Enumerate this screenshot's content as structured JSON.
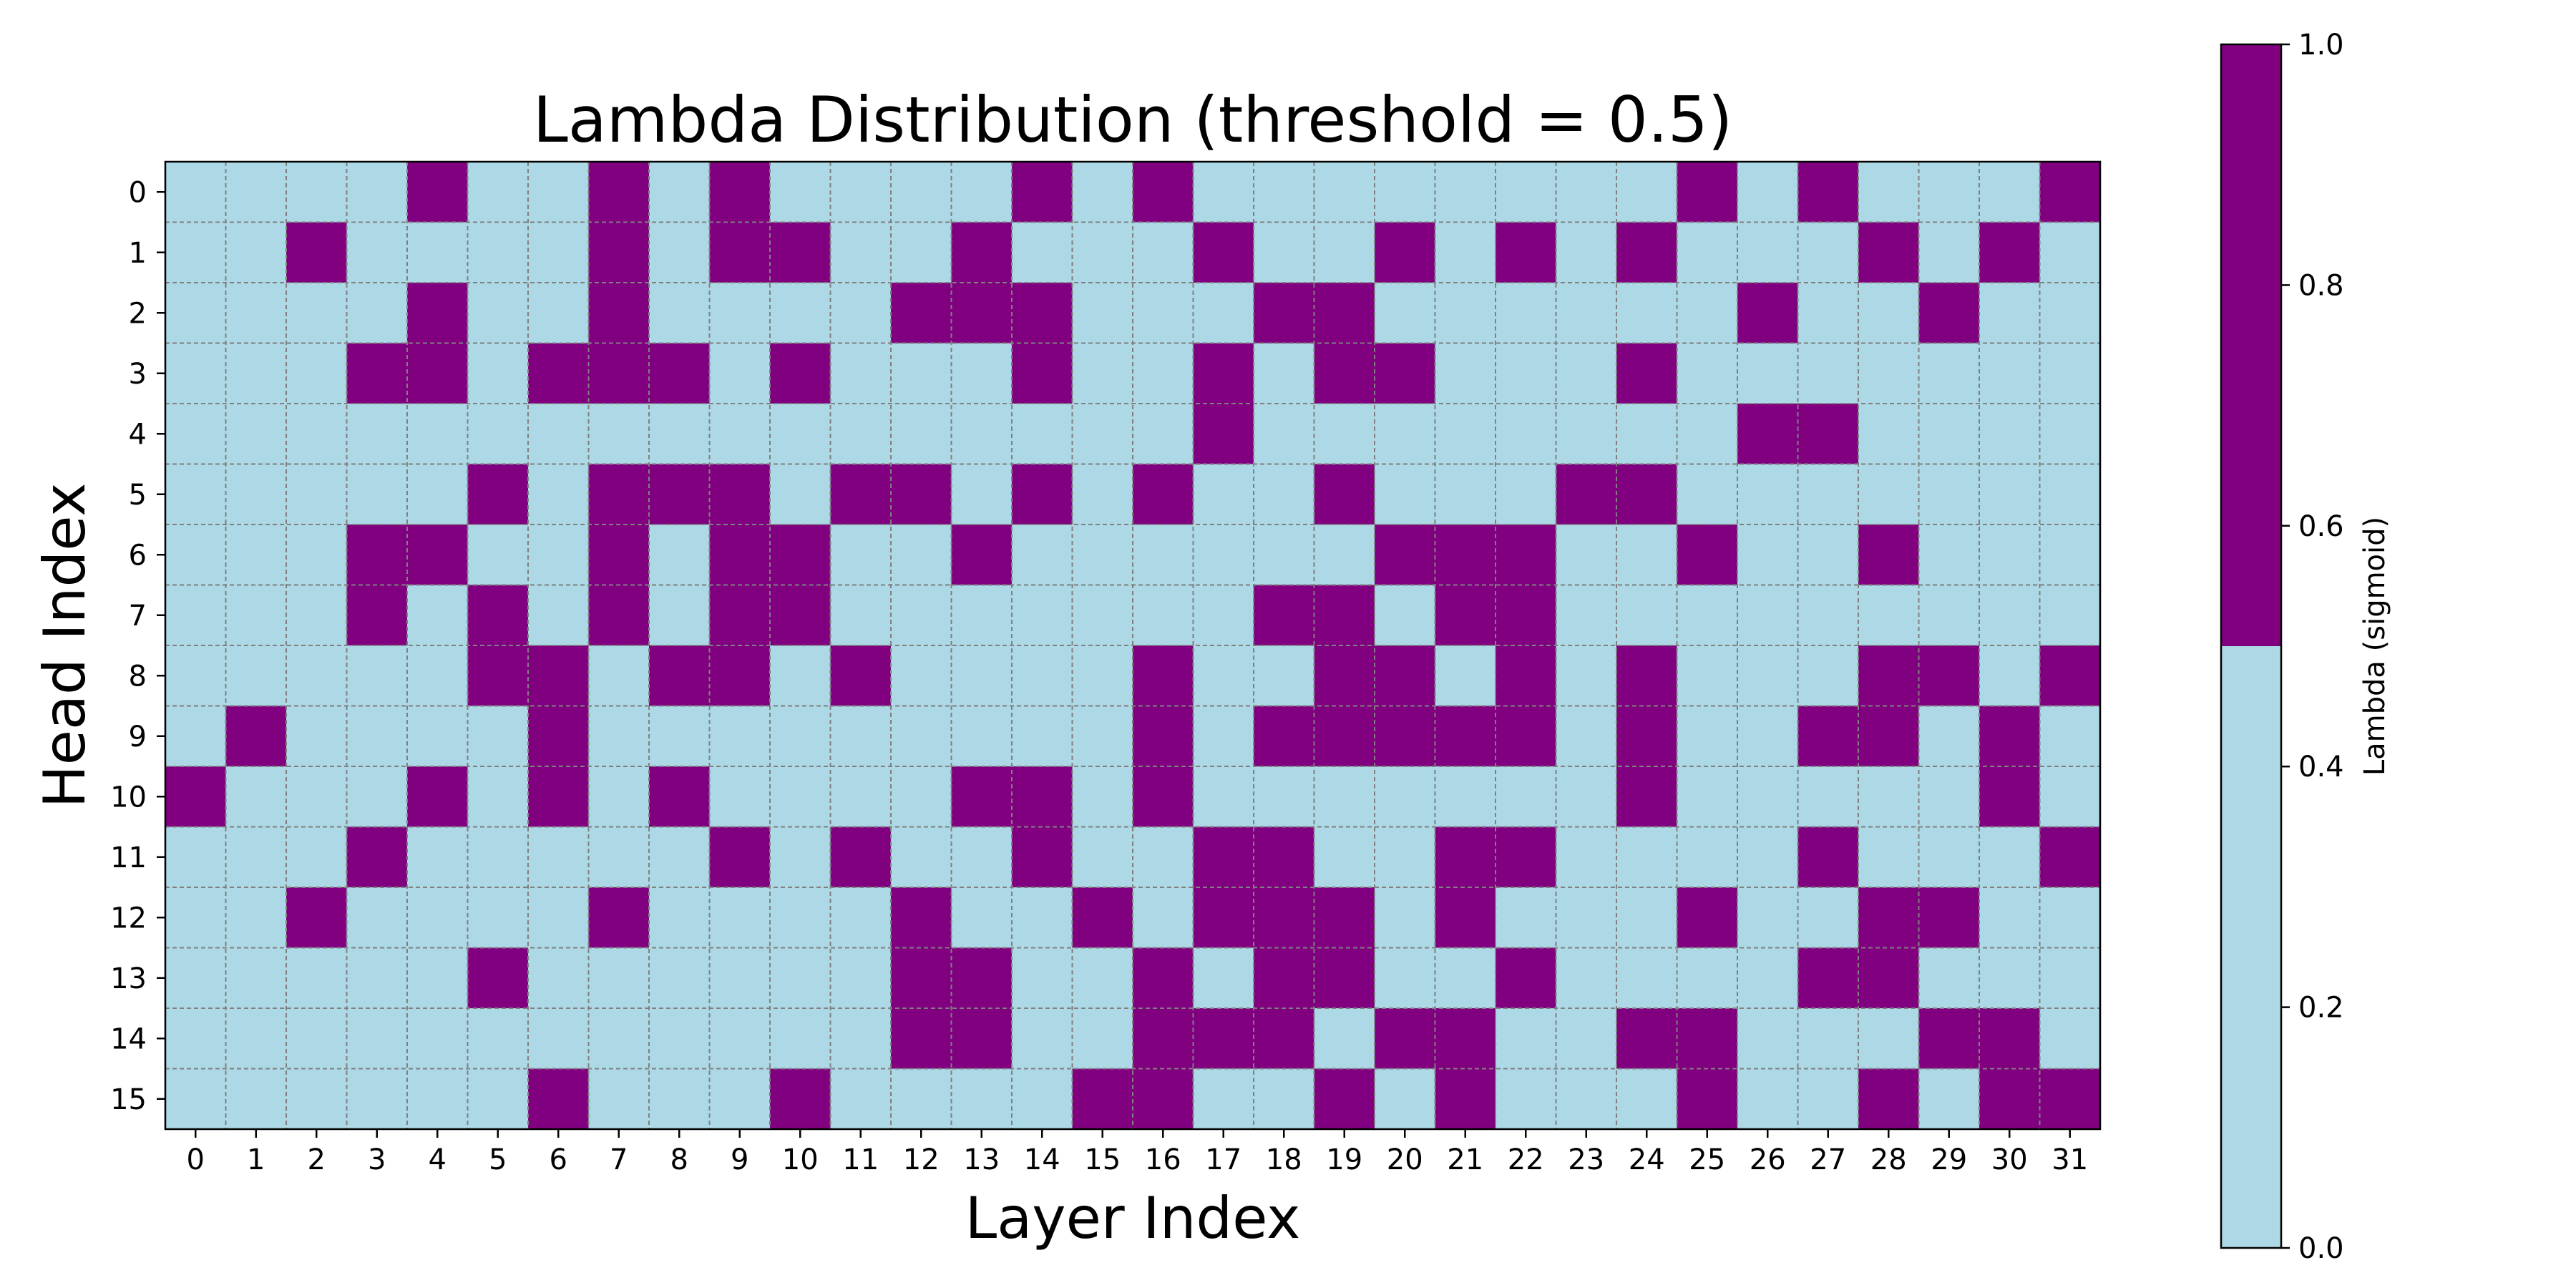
{
  "chart_data": {
    "type": "heatmap",
    "title": "Lambda Distribution (threshold = 0.5)",
    "xlabel": "Layer Index",
    "ylabel": "Head Index",
    "x_ticks": [
      "0",
      "1",
      "2",
      "3",
      "4",
      "5",
      "6",
      "7",
      "8",
      "9",
      "10",
      "11",
      "12",
      "13",
      "14",
      "15",
      "16",
      "17",
      "18",
      "19",
      "20",
      "21",
      "22",
      "23",
      "24",
      "25",
      "26",
      "27",
      "28",
      "29",
      "30",
      "31"
    ],
    "y_ticks": [
      "0",
      "1",
      "2",
      "3",
      "4",
      "5",
      "6",
      "7",
      "8",
      "9",
      "10",
      "11",
      "12",
      "13",
      "14",
      "15"
    ],
    "grid": true,
    "threshold": 0.5,
    "colors": {
      "low": "#add8e6",
      "high": "#800080"
    },
    "colorbar": {
      "label": "Lambda (sigmoid)",
      "range": [
        0.0,
        1.0
      ],
      "ticks": [
        "0.0",
        "0.2",
        "0.4",
        "0.6",
        "0.8",
        "1.0"
      ]
    },
    "values": [
      [
        0,
        0,
        0,
        0,
        1,
        0,
        0,
        1,
        0,
        1,
        0,
        0,
        0,
        0,
        1,
        0,
        1,
        0,
        0,
        0,
        0,
        0,
        0,
        0,
        0,
        1,
        0,
        1,
        0,
        0,
        0,
        1
      ],
      [
        0,
        0,
        1,
        0,
        0,
        0,
        0,
        1,
        0,
        1,
        1,
        0,
        0,
        1,
        0,
        0,
        0,
        1,
        0,
        0,
        1,
        0,
        1,
        0,
        1,
        0,
        0,
        0,
        1,
        0,
        1,
        0
      ],
      [
        0,
        0,
        0,
        0,
        1,
        0,
        0,
        1,
        0,
        0,
        0,
        0,
        1,
        1,
        1,
        0,
        0,
        0,
        1,
        1,
        0,
        0,
        0,
        0,
        0,
        0,
        1,
        0,
        0,
        1,
        0,
        0
      ],
      [
        0,
        0,
        0,
        1,
        1,
        0,
        1,
        1,
        1,
        0,
        1,
        0,
        0,
        0,
        1,
        0,
        0,
        1,
        0,
        1,
        1,
        0,
        0,
        0,
        1,
        0,
        0,
        0,
        0,
        0,
        0,
        0
      ],
      [
        0,
        0,
        0,
        0,
        0,
        0,
        0,
        0,
        0,
        0,
        0,
        0,
        0,
        0,
        0,
        0,
        0,
        1,
        0,
        0,
        0,
        0,
        0,
        0,
        0,
        0,
        1,
        1,
        0,
        0,
        0,
        0
      ],
      [
        0,
        0,
        0,
        0,
        0,
        1,
        0,
        1,
        1,
        1,
        0,
        1,
        1,
        0,
        1,
        0,
        1,
        0,
        0,
        1,
        0,
        0,
        0,
        1,
        1,
        0,
        0,
        0,
        0,
        0,
        0,
        0
      ],
      [
        0,
        0,
        0,
        1,
        1,
        0,
        0,
        1,
        0,
        1,
        1,
        0,
        0,
        1,
        0,
        0,
        0,
        0,
        0,
        0,
        1,
        1,
        1,
        0,
        0,
        1,
        0,
        0,
        1,
        0,
        0,
        0
      ],
      [
        0,
        0,
        0,
        1,
        0,
        1,
        0,
        1,
        0,
        1,
        1,
        0,
        0,
        0,
        0,
        0,
        0,
        0,
        1,
        1,
        0,
        1,
        1,
        0,
        0,
        0,
        0,
        0,
        0,
        0,
        0,
        0
      ],
      [
        0,
        0,
        0,
        0,
        0,
        1,
        1,
        0,
        1,
        1,
        0,
        1,
        0,
        0,
        0,
        0,
        1,
        0,
        0,
        1,
        1,
        0,
        1,
        0,
        1,
        0,
        0,
        0,
        1,
        1,
        0,
        1
      ],
      [
        0,
        1,
        0,
        0,
        0,
        0,
        1,
        0,
        0,
        0,
        0,
        0,
        0,
        0,
        0,
        0,
        1,
        0,
        1,
        1,
        1,
        1,
        1,
        0,
        1,
        0,
        0,
        1,
        1,
        0,
        1,
        0
      ],
      [
        1,
        0,
        0,
        0,
        1,
        0,
        1,
        0,
        1,
        0,
        0,
        0,
        0,
        1,
        1,
        0,
        1,
        0,
        0,
        0,
        0,
        0,
        0,
        0,
        1,
        0,
        0,
        0,
        0,
        0,
        1,
        0
      ],
      [
        0,
        0,
        0,
        1,
        0,
        0,
        0,
        0,
        0,
        1,
        0,
        1,
        0,
        0,
        1,
        0,
        0,
        1,
        1,
        0,
        0,
        1,
        1,
        0,
        0,
        0,
        0,
        1,
        0,
        0,
        0,
        1
      ],
      [
        0,
        0,
        1,
        0,
        0,
        0,
        0,
        1,
        0,
        0,
        0,
        0,
        1,
        0,
        0,
        1,
        0,
        1,
        1,
        1,
        0,
        1,
        0,
        0,
        0,
        1,
        0,
        0,
        1,
        1,
        0,
        0
      ],
      [
        0,
        0,
        0,
        0,
        0,
        1,
        0,
        0,
        0,
        0,
        0,
        0,
        1,
        1,
        0,
        0,
        1,
        0,
        1,
        1,
        0,
        0,
        1,
        0,
        0,
        0,
        0,
        1,
        1,
        0,
        0,
        0
      ],
      [
        0,
        0,
        0,
        0,
        0,
        0,
        0,
        0,
        0,
        0,
        0,
        0,
        1,
        1,
        0,
        0,
        1,
        1,
        1,
        0,
        1,
        1,
        0,
        0,
        1,
        1,
        0,
        0,
        0,
        1,
        1,
        0
      ],
      [
        0,
        0,
        0,
        0,
        0,
        0,
        1,
        0,
        0,
        0,
        1,
        0,
        0,
        0,
        0,
        1,
        1,
        0,
        0,
        1,
        0,
        1,
        0,
        0,
        0,
        1,
        0,
        0,
        1,
        0,
        1,
        1
      ]
    ]
  }
}
